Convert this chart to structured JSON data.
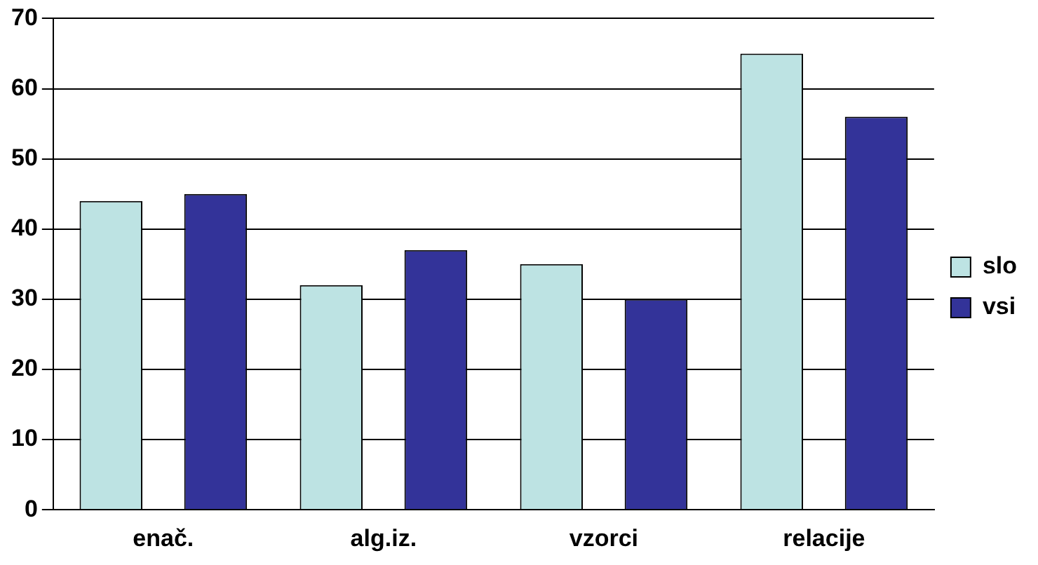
{
  "chart_data": {
    "type": "bar",
    "categories": [
      "enač.",
      "alg.iz.",
      "vzorci",
      "relacije"
    ],
    "series": [
      {
        "name": "slo",
        "color": "#bde3e3",
        "values": [
          44,
          32,
          35,
          65
        ]
      },
      {
        "name": "vsi",
        "color": "#333399",
        "values": [
          45,
          37,
          30,
          56
        ]
      }
    ],
    "ylim": [
      0,
      70
    ],
    "yticks": [
      0,
      10,
      20,
      30,
      40,
      50,
      60,
      70
    ],
    "grid": "y",
    "legend": "right"
  }
}
